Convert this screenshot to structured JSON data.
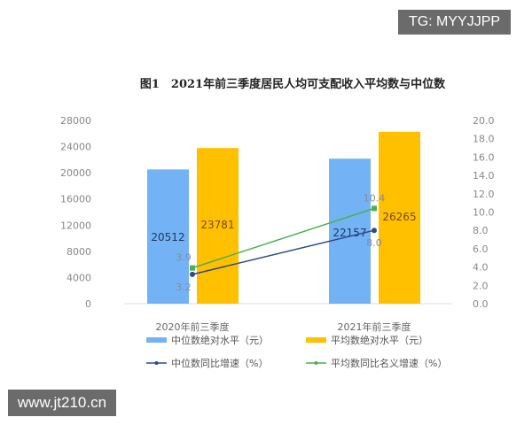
{
  "watermarks": {
    "top": "TG: MYYJJPP",
    "bottom": "www.jt210.cn"
  },
  "chart_data": {
    "type": "bar+line",
    "title": "图1　2021年前三季度居民人均可支配收入平均数与中位数",
    "categories": [
      "2020年前三季度",
      "2021年前三季度"
    ],
    "bar_series": [
      {
        "name": "中位数绝对水平（元）",
        "values": [
          20512,
          22157
        ],
        "color": "#73B3F5"
      },
      {
        "name": "平均数绝对水平（元）",
        "values": [
          23781,
          26265
        ],
        "color": "#FFC000"
      }
    ],
    "line_series": [
      {
        "name": "中位数同比增速（%）",
        "values": [
          3.2,
          8.0
        ],
        "color": "#2E4A87"
      },
      {
        "name": "平均数同比名义增速（%）",
        "values": [
          3.9,
          10.4
        ],
        "color": "#4CAF50"
      }
    ],
    "y_left": {
      "ylim": [
        0,
        28000
      ],
      "ticks": [
        "0",
        "4000",
        "8000",
        "12000",
        "16000",
        "20000",
        "24000",
        "28000"
      ]
    },
    "y_right": {
      "ylim": [
        0,
        20
      ],
      "ticks": [
        "0.0",
        "2.0",
        "4.0",
        "6.0",
        "8.0",
        "10.0",
        "12.0",
        "14.0",
        "16.0",
        "18.0",
        "20.0"
      ]
    },
    "legend": "bottom"
  }
}
